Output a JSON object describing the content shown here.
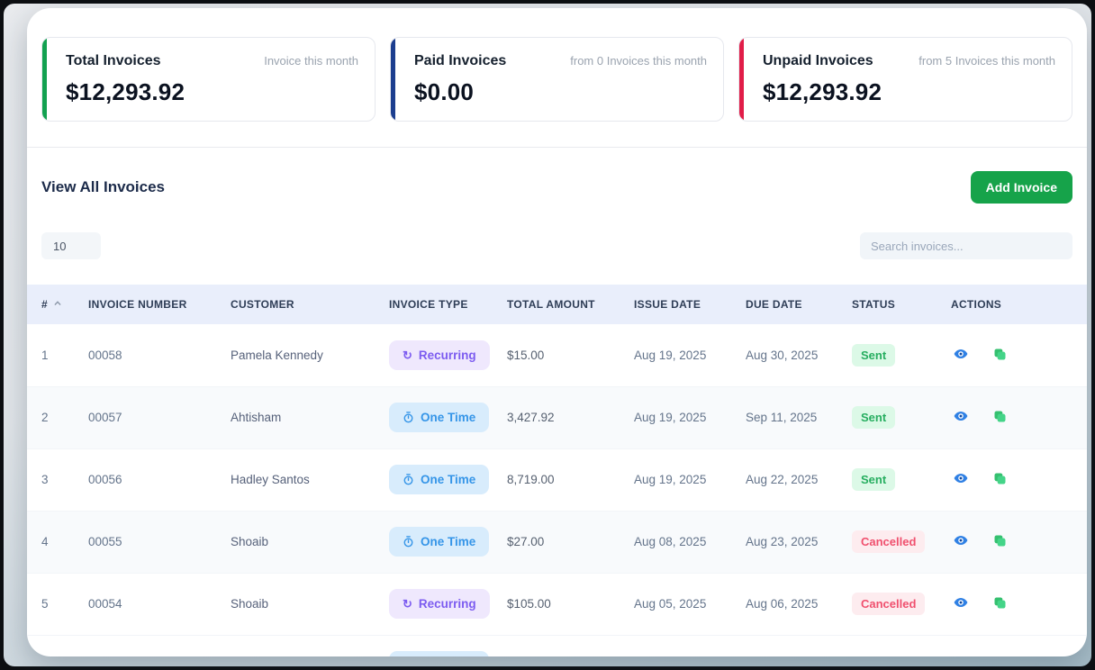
{
  "stats": [
    {
      "title": "Total Invoices",
      "sublabel": "Invoice this month",
      "value": "$12,293.92",
      "accent": "#12a150"
    },
    {
      "title": "Paid Invoices",
      "sublabel": "from 0 Invoices this month",
      "value": "$0.00",
      "accent": "#1c3e8f"
    },
    {
      "title": "Unpaid Invoices",
      "sublabel": "from 5 Invoices this month",
      "value": "$12,293.92",
      "accent": "#e11d48"
    }
  ],
  "section": {
    "title": "View All Invoices",
    "add_invoice_label": "Add Invoice"
  },
  "controls": {
    "page_size_value": "10",
    "search_placeholder": "Search invoices..."
  },
  "table": {
    "columns": [
      "#",
      "INVOICE NUMBER",
      "CUSTOMER",
      "INVOICE TYPE",
      "TOTAL AMOUNT",
      "ISSUE DATE",
      "DUE DATE",
      "STATUS",
      "ACTIONS"
    ],
    "rows": [
      {
        "index": "1",
        "invoice_number": "00058",
        "customer": "Pamela Kennedy",
        "invoice_type": "Recurring",
        "total_amount": "$15.00",
        "issue_date": "Aug 19, 2025",
        "due_date": "Aug 30, 2025",
        "status": "Sent"
      },
      {
        "index": "2",
        "invoice_number": "00057",
        "customer": "Ahtisham",
        "invoice_type": "One Time",
        "total_amount": "3,427.92",
        "issue_date": "Aug 19, 2025",
        "due_date": "Sep 11, 2025",
        "status": "Sent"
      },
      {
        "index": "3",
        "invoice_number": "00056",
        "customer": "Hadley Santos",
        "invoice_type": "One Time",
        "total_amount": "8,719.00",
        "issue_date": "Aug 19, 2025",
        "due_date": "Aug 22, 2025",
        "status": "Sent"
      },
      {
        "index": "4",
        "invoice_number": "00055",
        "customer": "Shoaib",
        "invoice_type": "One Time",
        "total_amount": "$27.00",
        "issue_date": "Aug 08, 2025",
        "due_date": "Aug 23, 2025",
        "status": "Cancelled"
      },
      {
        "index": "5",
        "invoice_number": "00054",
        "customer": "Shoaib",
        "invoice_type": "Recurring",
        "total_amount": "$105.00",
        "issue_date": "Aug 05, 2025",
        "due_date": "Aug 06, 2025",
        "status": "Cancelled"
      }
    ],
    "partial_row": {
      "invoice_type": "One Time"
    },
    "row_actions": [
      "view",
      "duplicate"
    ]
  },
  "colors": {
    "add_button": "#16a34a",
    "recurring_text": "#7c5cf0",
    "recurring_bg": "#efe8fd",
    "one-time_text": "#3595e8",
    "one-time_bg": "#d8ecfc",
    "sent_text": "#27ae60",
    "sent_bg": "#dcf9e7",
    "cancelled_text": "#f0506e",
    "cancelled_bg": "#fdecef",
    "view_icon": "#2f80e4",
    "duplicate_icon": "#44d488"
  }
}
